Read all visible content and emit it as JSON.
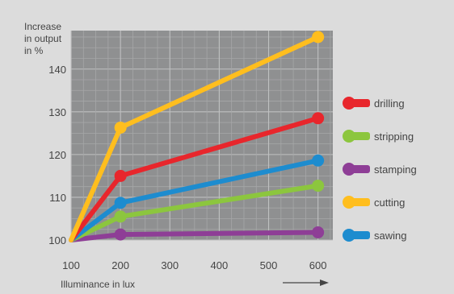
{
  "chart_data": {
    "type": "line",
    "title": "",
    "ylabel_lines": [
      "Increase",
      "in output",
      "in %"
    ],
    "xlabel": "Illuminance in lux",
    "x_ticks": [
      100,
      200,
      300,
      400,
      500,
      600
    ],
    "y_ticks": [
      100,
      110,
      120,
      130,
      140
    ],
    "xlim": [
      100,
      630
    ],
    "ylim": [
      100,
      149
    ],
    "grid": true,
    "legend_position": "right",
    "series": [
      {
        "name": "drilling",
        "color": "#e8262c",
        "x": [
          100,
          200,
          600
        ],
        "y": [
          100,
          115,
          128.5
        ]
      },
      {
        "name": "stripping",
        "color": "#8cc63e",
        "x": [
          100,
          200,
          600
        ],
        "y": [
          100,
          105.5,
          112.7
        ]
      },
      {
        "name": "stamping",
        "color": "#8e3e96",
        "x": [
          100,
          200,
          600
        ],
        "y": [
          100,
          101.3,
          101.8
        ]
      },
      {
        "name": "cutting",
        "color": "#ffbe1e",
        "x": [
          100,
          200,
          600
        ],
        "y": [
          100,
          126.3,
          147.5
        ]
      },
      {
        "name": "sawing",
        "color": "#1d8ccf",
        "x": [
          100,
          200,
          600
        ],
        "y": [
          100,
          108.7,
          118.6
        ]
      }
    ],
    "draw_order": [
      "stamping",
      "stripping",
      "sawing",
      "drilling",
      "cutting"
    ]
  }
}
